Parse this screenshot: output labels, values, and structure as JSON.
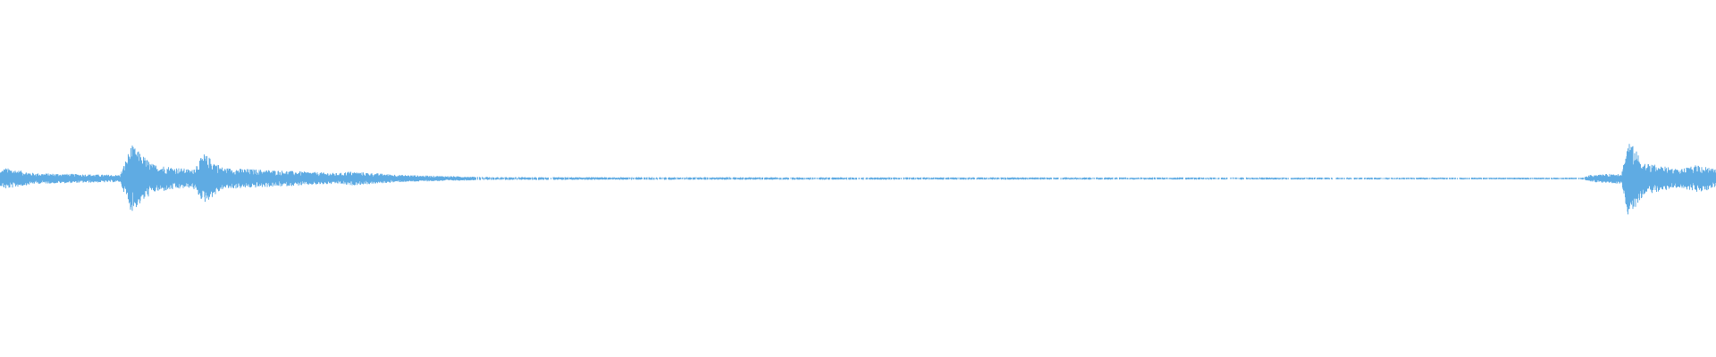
{
  "chart_data": {
    "type": "waveform",
    "title": "",
    "xlabel": "",
    "ylabel": "",
    "amplitude_range": [
      -1,
      1
    ],
    "grid": false,
    "axes_visible": false,
    "color": "#5fabe3",
    "background": "#ffffff",
    "envelope": [
      {
        "t": 0,
        "amp": 0.04
      },
      {
        "t": 0.3,
        "amp": 0.06
      },
      {
        "t": 2,
        "amp": 0.03
      },
      {
        "t": 7.0,
        "amp": 0.02
      },
      {
        "t": 7.66,
        "amp": 0.19
      },
      {
        "t": 8.9,
        "amp": 0.08
      },
      {
        "t": 11.2,
        "amp": 0.05
      },
      {
        "t": 11.9,
        "amp": 0.14
      },
      {
        "t": 13.0,
        "amp": 0.06
      },
      {
        "t": 19.8,
        "amp": 0.03
      },
      {
        "t": 20.3,
        "amp": 0.04
      },
      {
        "t": 23.4,
        "amp": 0.02
      },
      {
        "t": 28.6,
        "amp": 0.008
      },
      {
        "t": 92.2,
        "amp": 0.005
      },
      {
        "t": 92.7,
        "amp": 0.02
      },
      {
        "t": 94.5,
        "amp": 0.03
      },
      {
        "t": 94.9,
        "amp": 0.22
      },
      {
        "t": 95.8,
        "amp": 0.09
      },
      {
        "t": 97.9,
        "amp": 0.05
      },
      {
        "t": 99.0,
        "amp": 0.08
      },
      {
        "t": 100,
        "amp": 0.05
      }
    ]
  }
}
